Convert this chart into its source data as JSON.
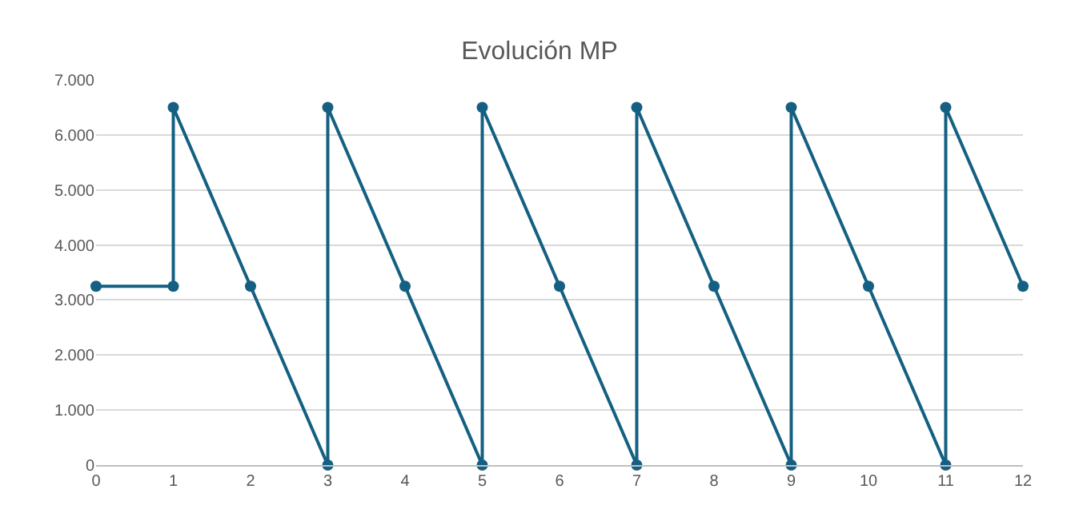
{
  "chart_data": {
    "type": "line",
    "title": "Evolución MP",
    "x": [
      0,
      1,
      1,
      2,
      3,
      3,
      4,
      5,
      5,
      6,
      7,
      7,
      8,
      9,
      9,
      10,
      11,
      11,
      12
    ],
    "series": [
      {
        "color": "#156082",
        "values": [
          3250,
          3250,
          6500,
          3250,
          0,
          6500,
          3250,
          0,
          6500,
          3250,
          0,
          6500,
          3250,
          0,
          6500,
          3250,
          0,
          6500,
          3250
        ]
      }
    ],
    "xlim": [
      0,
      12
    ],
    "xticks": [
      0,
      1,
      2,
      3,
      4,
      5,
      6,
      7,
      8,
      9,
      10,
      11,
      12
    ],
    "ylim": [
      0,
      7000
    ],
    "yticks": [
      0,
      {
        "value": 1000,
        "label": "1.000"
      },
      {
        "value": 2000,
        "label": "2.000"
      },
      {
        "value": 3000,
        "label": "3.000"
      },
      {
        "value": 4000,
        "label": "4.000"
      },
      {
        "value": 5000,
        "label": "5.000"
      },
      {
        "value": 6000,
        "label": "6.000"
      },
      {
        "value": 7000,
        "label": "7.000"
      }
    ],
    "grid": "y",
    "legend": false,
    "marker": "circle",
    "line_style": "solid"
  }
}
